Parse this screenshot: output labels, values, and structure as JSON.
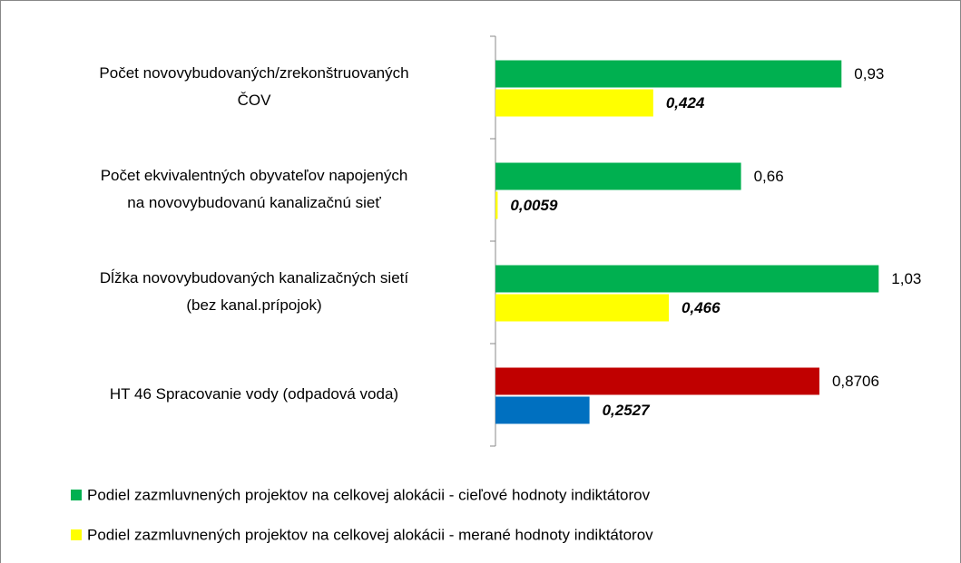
{
  "chart_data": {
    "type": "bar",
    "orientation": "horizontal",
    "categories": [
      [
        "Počet novovybudovaných/zrekonštruovaných",
        "ČOV"
      ],
      [
        "Počet ekvivalentných obyvateľov napojených",
        "na novovybudovanú kanalizačnú sieť"
      ],
      [
        "Dĺžka novovybudovaných kanalizačných sietí",
        "(bez kanal.prípojok)"
      ],
      [
        "HT 46 Spracovanie vody (odpadová voda)"
      ]
    ],
    "series": [
      {
        "name": "Podiel zazmluvnených projektov na celkovej alokácii - cieľové hodnoty indiktátorov",
        "color": "#00b050",
        "colors": [
          "#00b050",
          "#00b050",
          "#00b050",
          "#c00000"
        ],
        "values": [
          0.93,
          0.66,
          1.03,
          0.8706
        ],
        "value_labels": [
          "0,93",
          "0,66",
          "1,03",
          "0,8706"
        ]
      },
      {
        "name": "Podiel zazmluvnených projektov na celkovej alokácii - merané hodnoty  indiktátorov",
        "color": "#ffff00",
        "colors": [
          "#ffff00",
          "#ffff00",
          "#ffff00",
          "#0070c0"
        ],
        "values": [
          0.424,
          0.0059,
          0.466,
          0.2527
        ],
        "value_labels": [
          "0,424",
          "0,0059",
          "0,466",
          "0,2527"
        ]
      }
    ],
    "xlim": [
      0,
      1.2
    ]
  }
}
